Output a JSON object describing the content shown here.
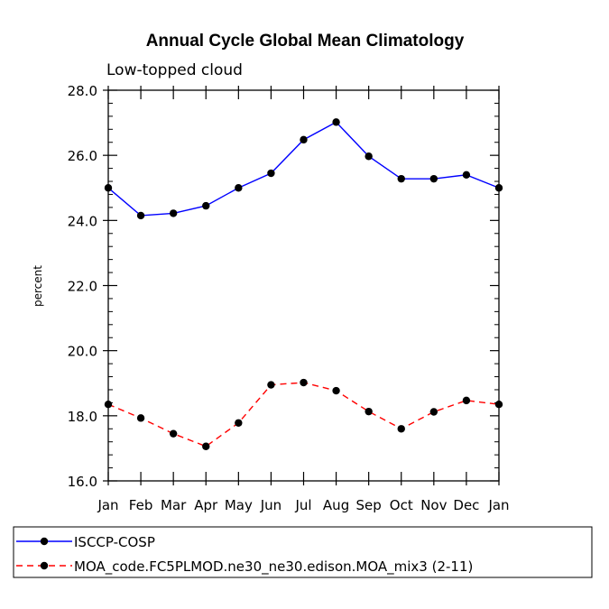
{
  "chart_data": {
    "type": "line",
    "title": "Annual Cycle Global Mean Climatology",
    "subtitle": "Low-topped cloud",
    "xlabel": "",
    "ylabel": "percent",
    "categories": [
      "Jan",
      "Feb",
      "Mar",
      "Apr",
      "May",
      "Jun",
      "Jul",
      "Aug",
      "Sep",
      "Oct",
      "Nov",
      "Dec",
      "Jan"
    ],
    "ylim": [
      16.0,
      28.0
    ],
    "y_ticks": [
      "16.0",
      "18.0",
      "20.0",
      "22.0",
      "24.0",
      "26.0",
      "28.0"
    ],
    "grid": false,
    "legend_position": "bottom",
    "series": [
      {
        "name": "ISCCP-COSP",
        "color": "#0000ff",
        "dash": "solid",
        "values": [
          25.0,
          24.15,
          24.22,
          24.45,
          25.0,
          25.45,
          26.48,
          27.02,
          25.97,
          25.28,
          25.28,
          25.4,
          25.0
        ]
      },
      {
        "name": "MOA_code.FC5PLMOD.ne30_ne30.edison.MOA_mix3 (2-11)",
        "color": "#ff0000",
        "dash": "dashed",
        "values": [
          18.35,
          17.93,
          17.45,
          17.06,
          17.78,
          18.95,
          19.02,
          18.77,
          18.13,
          17.6,
          18.12,
          18.47,
          18.35
        ]
      }
    ]
  }
}
